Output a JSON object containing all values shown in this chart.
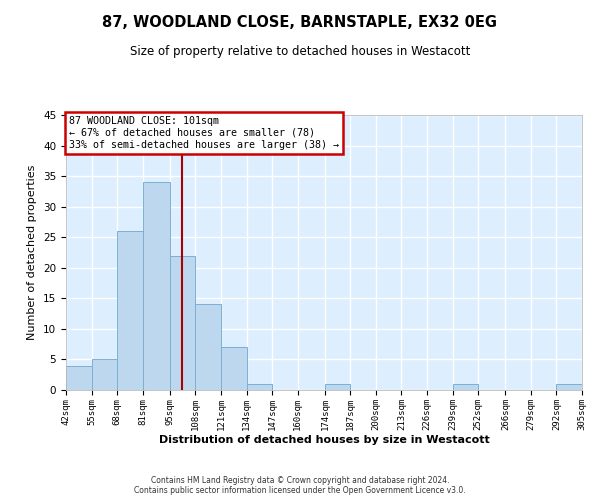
{
  "title": "87, WOODLAND CLOSE, BARNSTAPLE, EX32 0EG",
  "subtitle": "Size of property relative to detached houses in Westacott",
  "xlabel": "Distribution of detached houses by size in Westacott",
  "ylabel": "Number of detached properties",
  "bin_edges": [
    42,
    55,
    68,
    81,
    95,
    108,
    121,
    134,
    147,
    160,
    174,
    187,
    200,
    213,
    226,
    239,
    252,
    266,
    279,
    292,
    305
  ],
  "bin_labels": [
    "42sqm",
    "55sqm",
    "68sqm",
    "81sqm",
    "95sqm",
    "108sqm",
    "121sqm",
    "134sqm",
    "147sqm",
    "160sqm",
    "174sqm",
    "187sqm",
    "200sqm",
    "213sqm",
    "226sqm",
    "239sqm",
    "252sqm",
    "266sqm",
    "279sqm",
    "292sqm",
    "305sqm"
  ],
  "counts": [
    4,
    5,
    26,
    34,
    22,
    14,
    7,
    1,
    0,
    0,
    1,
    0,
    0,
    0,
    0,
    1,
    0,
    0,
    0,
    1
  ],
  "bar_color": "#bdd7ee",
  "bar_edge_color": "#7ab0d4",
  "vline_x": 101,
  "vline_color": "#aa0000",
  "annotation_title": "87 WOODLAND CLOSE: 101sqm",
  "annotation_line1": "← 67% of detached houses are smaller (78)",
  "annotation_line2": "33% of semi-detached houses are larger (38) →",
  "annotation_box_color": "#ffffff",
  "annotation_box_edge_color": "#cc0000",
  "ylim": [
    0,
    45
  ],
  "yticks": [
    0,
    5,
    10,
    15,
    20,
    25,
    30,
    35,
    40,
    45
  ],
  "footer_line1": "Contains HM Land Registry data © Crown copyright and database right 2024.",
  "footer_line2": "Contains public sector information licensed under the Open Government Licence v3.0.",
  "bg_color": "#ddeeff",
  "grid_color": "#ffffff",
  "fig_bg_color": "#ffffff"
}
